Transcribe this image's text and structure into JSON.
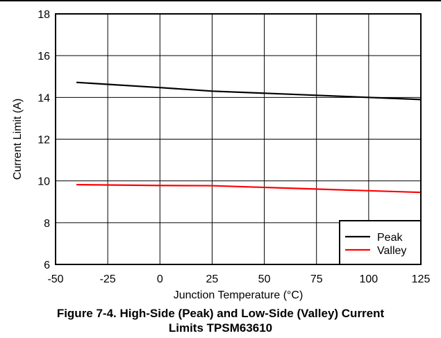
{
  "chart_data": {
    "type": "line",
    "xlabel": "Junction Temperature (°C)",
    "ylabel": "Current Limit (A)",
    "xlim": [
      -50,
      125
    ],
    "ylim": [
      6,
      18
    ],
    "xticks": [
      -50,
      -25,
      0,
      25,
      50,
      75,
      100,
      125
    ],
    "yticks": [
      6,
      8,
      10,
      12,
      14,
      16,
      18
    ],
    "grid": true,
    "legend_position": "bottom-right",
    "series": [
      {
        "name": "Peak",
        "color": "#000000",
        "x": [
          -40,
          0,
          25,
          125
        ],
        "y": [
          14.72,
          14.47,
          14.3,
          13.9
        ]
      },
      {
        "name": "Valley",
        "color": "#ff0000",
        "x": [
          -40,
          0,
          25,
          125
        ],
        "y": [
          9.82,
          9.78,
          9.77,
          9.45
        ]
      }
    ]
  },
  "caption": {
    "line1": "Figure 7-4. High-Side (Peak) and Low-Side (Valley) Current",
    "line2": "Limits TPSM63610"
  }
}
